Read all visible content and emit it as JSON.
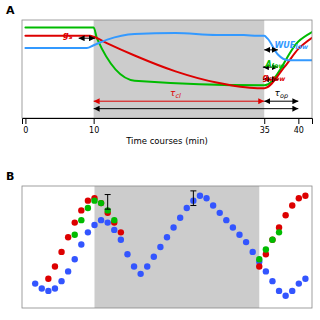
{
  "chart_data": [
    {
      "type": "line",
      "title": "A",
      "xlabel": "Time courses (min)",
      "xlim": [
        -0.5,
        42
      ],
      "ylim": [
        0.0,
        1.05
      ],
      "xticks": [
        0,
        10,
        35,
        40
      ],
      "tick_labels": "x",
      "span": {
        "x": [
          10,
          35
        ],
        "color": "#cccccc"
      },
      "series": [
        {
          "color": "#00bb00",
          "x": [
            0,
            9.5,
            10.0,
            10.5,
            16,
            35,
            35.5,
            40,
            42
          ],
          "values": [
            0.97,
            0.97,
            0.97,
            0.85,
            0.4,
            0.35,
            0.36,
            0.82,
            0.92
          ]
        },
        {
          "color": "#dd0000",
          "x": [
            0,
            9.5,
            10.0,
            12,
            16,
            22,
            28,
            34,
            35,
            38,
            40,
            42
          ],
          "values": [
            0.88,
            0.88,
            0.87,
            0.8,
            0.67,
            0.5,
            0.38,
            0.32,
            0.32,
            0.55,
            0.74,
            0.86
          ]
        },
        {
          "color": "#3399ff",
          "x": [
            0,
            9,
            10,
            12,
            16,
            22,
            28,
            32,
            34,
            35,
            35.5,
            37,
            38.5,
            40,
            42
          ],
          "values": [
            0.75,
            0.75,
            0.78,
            0.84,
            0.9,
            0.91,
            0.89,
            0.89,
            0.88,
            0.88,
            0.85,
            0.68,
            0.62,
            0.62,
            0.62
          ]
        }
      ],
      "annotations": [
        {
          "text": "g",
          "sub": "s",
          "x": 5.5,
          "y": 0.89,
          "color": "#dd0000"
        },
        {
          "text": "WUE",
          "sub": "low",
          "x": 36.5,
          "y": 0.78,
          "color": "#3399ff"
        },
        {
          "text": "A",
          "sub": "low",
          "x": 35.2,
          "y": 0.58,
          "color": "#00bb00"
        },
        {
          "text": "g",
          "sub": "slow",
          "x": 34.8,
          "y": 0.44,
          "color": "#dd0000"
        }
      ],
      "arrows": [
        {
          "x": [
            7.8,
            10.2
          ],
          "y": 0.855,
          "color": "#000000"
        },
        {
          "x": [
            35.0,
            37.0
          ],
          "y": 0.73,
          "color": "#000000"
        },
        {
          "x": [
            34.8,
            37.0
          ],
          "y": 0.545,
          "color": "#000000"
        },
        {
          "x": [
            34.8,
            37.0
          ],
          "y": 0.415,
          "color": "#000000"
        },
        {
          "x": [
            10,
            35
          ],
          "y": 0.18,
          "color": "#dd0000",
          "label": {
            "text": "τ",
            "sub": "cl",
            "x": 22,
            "y": 0.2
          }
        },
        {
          "x": [
            35,
            40
          ],
          "y": 0.18,
          "color": "#000000",
          "label": {
            "text": "τ",
            "sub": "op",
            "x": 37.5,
            "y": 0.2
          }
        },
        {
          "x": [
            10,
            40
          ],
          "y": 0.1,
          "color": "#000000"
        }
      ]
    },
    {
      "type": "scatter",
      "title": "B",
      "xlim": [
        -1,
        43
      ],
      "ylim": [
        -2.5,
        2.5
      ],
      "tick_labels": false,
      "span": {
        "x": [
          10,
          35
        ],
        "color": "#cccccc"
      },
      "series": [
        {
          "color": "#3355ff",
          "x": [
            1,
            2,
            3,
            4,
            5,
            6,
            7,
            8,
            9,
            10,
            11,
            12,
            13,
            14,
            15,
            16,
            17,
            18,
            19,
            20,
            21,
            22,
            23,
            24,
            25,
            26,
            27,
            28,
            29,
            30,
            31,
            32,
            33,
            34,
            35,
            36,
            37,
            38,
            39,
            40,
            41,
            42
          ],
          "values": [
            -1.5,
            -1.7,
            -1.8,
            -1.7,
            -1.4,
            -1.0,
            -0.5,
            0.1,
            0.6,
            0.9,
            1.1,
            1.0,
            0.7,
            0.3,
            -0.3,
            -0.8,
            -1.1,
            -0.8,
            -0.4,
            0.0,
            0.4,
            0.8,
            1.2,
            1.6,
            1.9,
            2.1,
            2.0,
            1.7,
            1.4,
            1.1,
            0.8,
            0.5,
            0.2,
            -0.2,
            -0.6,
            -1.0,
            -1.4,
            -1.8,
            -2.0,
            -1.8,
            -1.5,
            -1.3
          ]
        },
        {
          "color": "#dd0000",
          "x": [
            3,
            4,
            5,
            6,
            7,
            8,
            9,
            10,
            11,
            12,
            13,
            14,
            35,
            36,
            37,
            38,
            39,
            40,
            41,
            42
          ],
          "values": [
            -1.3,
            -0.8,
            -0.2,
            0.4,
            1.0,
            1.5,
            1.9,
            2.0,
            1.8,
            1.4,
            1.0,
            0.6,
            -0.8,
            -0.3,
            0.3,
            0.8,
            1.3,
            1.7,
            2.0,
            2.1
          ]
        },
        {
          "color": "#00bb00",
          "x": [
            7,
            8,
            9,
            10,
            11,
            12,
            13,
            35,
            36,
            37,
            38
          ],
          "values": [
            0.5,
            1.1,
            1.6,
            1.9,
            1.8,
            1.5,
            1.1,
            -0.5,
            -0.1,
            0.3,
            0.6
          ]
        },
        {
          "type": "errorbar",
          "color": "#000000",
          "x": [
            12,
            25
          ],
          "values": [
            1.85,
            2.0
          ],
          "error": [
            0.3,
            0.3
          ]
        }
      ]
    }
  ]
}
